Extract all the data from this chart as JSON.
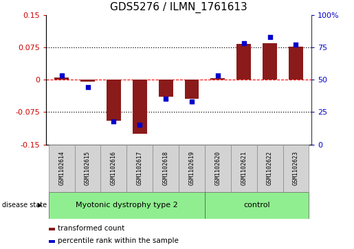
{
  "title": "GDS5276 / ILMN_1761613",
  "samples": [
    "GSM1102614",
    "GSM1102615",
    "GSM1102616",
    "GSM1102617",
    "GSM1102618",
    "GSM1102619",
    "GSM1102620",
    "GSM1102621",
    "GSM1102622",
    "GSM1102623"
  ],
  "bar_values": [
    0.005,
    -0.005,
    -0.095,
    -0.125,
    -0.04,
    -0.045,
    0.003,
    0.083,
    0.085,
    0.077
  ],
  "dot_values": [
    53,
    44,
    18,
    15,
    35,
    33,
    53,
    78,
    83,
    77
  ],
  "bar_color": "#8B1A1A",
  "dot_color": "#0000CC",
  "ylim": [
    -0.15,
    0.15
  ],
  "yticks_left": [
    -0.15,
    -0.075,
    0,
    0.075,
    0.15
  ],
  "ytick_left_labels": [
    "-0.15",
    "-0.075",
    "0",
    "0.075",
    "0.15"
  ],
  "yticks_right": [
    0,
    25,
    50,
    75,
    100
  ],
  "ytick_right_labels": [
    "0",
    "25",
    "50",
    "75",
    "100%"
  ],
  "groups": [
    {
      "label": "Myotonic dystrophy type 2",
      "n": 6,
      "color": "#90EE90"
    },
    {
      "label": "control",
      "n": 4,
      "color": "#90EE90"
    }
  ],
  "disease_state_label": "disease state",
  "legend_bar_label": "transformed count",
  "legend_dot_label": "percentile rank within the sample",
  "background_color": "#FFFFFF",
  "label_bg_color": "#D3D3D3",
  "group_bg_color": "#90EE90",
  "title_fontsize": 11,
  "tick_fontsize": 8,
  "sample_fontsize": 6,
  "group_fontsize": 8,
  "legend_fontsize": 7.5
}
